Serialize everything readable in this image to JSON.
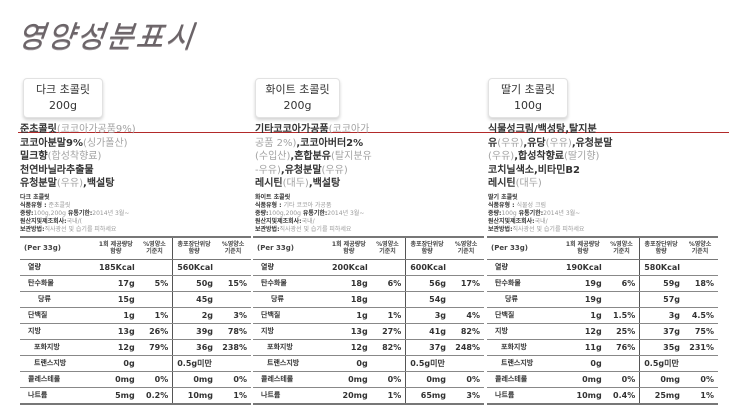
{
  "page": {
    "title": "영양성분표시",
    "accent_line_color": "#b22a2a"
  },
  "products": [
    {
      "name": "다크 초콜릿",
      "weight": "200g",
      "ingredients": [
        {
          "bold": "준초콜릿",
          "light": "(코코아가공품9%)"
        },
        {
          "bold": "코코아분말9%",
          "light": "(싱가폴산)"
        },
        {
          "bold": "밀크향",
          "light": "(합성착향료)"
        },
        {
          "bold": "천연바닐라추출물",
          "light": ""
        },
        {
          "bold": "유청분말",
          "light": "(우유)",
          "bold2": ",백설탕"
        }
      ],
      "meta": {
        "title": "다크 초콜릿",
        "type_label": "식품유형 :",
        "type_value": "준초콜릿",
        "weight_label": "중량:",
        "weight_value": "100g,200g",
        "expiry_label": "유통기한:",
        "expiry_value": "2014년 3월~",
        "origin_label": "원산지및제조회사:",
        "origin_value": "국내/(",
        "storage_label": "보관방법:",
        "storage_value": "직사광선 및 습기를 피하세요"
      },
      "table": {
        "headers": [
          "(Per 33g)",
          "1회 제공량당 함량",
          "%영양소 기준치",
          "총포장단위당 함량",
          "%영양소 기준치"
        ],
        "rows": [
          {
            "name": "열량",
            "serving": "185Kcal",
            "serving_pct": "",
            "total": "560Kcal",
            "total_pct": "",
            "level": 0
          },
          {
            "name": "탄수화물",
            "serving": "17g",
            "serving_pct": "5%",
            "total": "50g",
            "total_pct": "15%",
            "level": 0
          },
          {
            "name": "당류",
            "serving": "15g",
            "serving_pct": "",
            "total": "45g",
            "total_pct": "",
            "level": 2
          },
          {
            "name": "단백질",
            "serving": "1g",
            "serving_pct": "1%",
            "total": "2g",
            "total_pct": "3%",
            "level": 0
          },
          {
            "name": "지방",
            "serving": "13g",
            "serving_pct": "26%",
            "total": "39g",
            "total_pct": "78%",
            "level": 0
          },
          {
            "name": "포화지방",
            "serving": "12g",
            "serving_pct": "79%",
            "total": "36g",
            "total_pct": "238%",
            "level": 1
          },
          {
            "name": "트랜스지방",
            "serving": "0g",
            "serving_pct": "",
            "total": "0.5g미만",
            "total_pct": "",
            "level": 1
          },
          {
            "name": "콜레스테롤",
            "serving": "0mg",
            "serving_pct": "0%",
            "total": "0mg",
            "total_pct": "0%",
            "level": 0
          },
          {
            "name": "나트륨",
            "serving": "5mg",
            "serving_pct": "0.2%",
            "total": "10mg",
            "total_pct": "1%",
            "level": 0
          }
        ]
      }
    },
    {
      "name": "화이트 초콜릿",
      "weight": "200g",
      "ingredients": [
        {
          "bold": "기타코코아가공품",
          "light": "(코코아가"
        },
        {
          "bold": "",
          "light": "공품 2%)",
          "bold2": ",코코아버터2%"
        },
        {
          "bold": "",
          "light": "(수입산)",
          "bold2": ",혼합분유",
          "light2": "(탈지분유"
        },
        {
          "bold": "",
          "light": "-우유)",
          "bold2": ",유청분말",
          "light2": "(우유)"
        },
        {
          "bold": "레시틴",
          "light": "(대두)",
          "bold2": ",백설탕"
        }
      ],
      "meta": {
        "title": "화이트 초콜릿",
        "type_label": "식품유형 :",
        "type_value": "기타 코코아 가공품",
        "weight_label": "중량:",
        "weight_value": "100g,200g",
        "expiry_label": "유통기한:",
        "expiry_value": "2014년 3월~",
        "origin_label": "원산지및제조회사:",
        "origin_value": "국내/",
        "storage_label": "보관방법:",
        "storage_value": "직사광선 및 습기를 피하세요"
      },
      "table": {
        "headers": [
          "(Per 33g)",
          "1회 제공량당 함량",
          "%영양소 기준치",
          "총포장단위당 함량",
          "%영양소 기준치"
        ],
        "rows": [
          {
            "name": "열량",
            "serving": "200Kcal",
            "serving_pct": "",
            "total": "600Kcal",
            "total_pct": "",
            "level": 0
          },
          {
            "name": "탄수화물",
            "serving": "18g",
            "serving_pct": "6%",
            "total": "56g",
            "total_pct": "17%",
            "level": 0
          },
          {
            "name": "당류",
            "serving": "18g",
            "serving_pct": "",
            "total": "54g",
            "total_pct": "",
            "level": 2
          },
          {
            "name": "단백질",
            "serving": "1g",
            "serving_pct": "1%",
            "total": "3g",
            "total_pct": "4%",
            "level": 0
          },
          {
            "name": "지방",
            "serving": "13g",
            "serving_pct": "27%",
            "total": "41g",
            "total_pct": "82%",
            "level": 0
          },
          {
            "name": "포화지방",
            "serving": "12g",
            "serving_pct": "82%",
            "total": "37g",
            "total_pct": "248%",
            "level": 1
          },
          {
            "name": "트랜스지방",
            "serving": "0g",
            "serving_pct": "",
            "total": "0.5g미만",
            "total_pct": "",
            "level": 1
          },
          {
            "name": "콜레스테롤",
            "serving": "0mg",
            "serving_pct": "0%",
            "total": "0mg",
            "total_pct": "0%",
            "level": 0
          },
          {
            "name": "나트륨",
            "serving": "20mg",
            "serving_pct": "1%",
            "total": "65mg",
            "total_pct": "3%",
            "level": 0
          }
        ]
      }
    },
    {
      "name": "딸기 초콜릿",
      "weight": "100g",
      "ingredients": [
        {
          "bold": "식물성크림/백성탕,탈지분",
          "light": ""
        },
        {
          "bold": "유",
          "light": "(우유)",
          "bold2": ",유당",
          "light2": "(우유)",
          "bold3": ",유청분말"
        },
        {
          "bold": "",
          "light": "(우유)",
          "bold2": ",합성착향료",
          "light2": "(딸기향)"
        },
        {
          "bold": "코치닐색소,비타민B2",
          "light": ""
        },
        {
          "bold": "레시틴",
          "light": "(대두)"
        }
      ],
      "meta": {
        "title": "딸기 초콜릿",
        "type_label": "식품유형 :",
        "type_value": "식물성 크림",
        "weight_label": "중량:",
        "weight_value": "100g",
        "expiry_label": "유통기한:",
        "expiry_value": "2014년 3월~",
        "origin_label": "원산지및제조회사:",
        "origin_value": "국내/",
        "storage_label": "보관방법:",
        "storage_value": "직사광선 및 습기를 피하세요"
      },
      "table": {
        "headers": [
          "(Per 33g)",
          "1회 제공량당 함량",
          "%영양소 기준치",
          "총포장단위당 함량",
          "%영양소 기준치"
        ],
        "rows": [
          {
            "name": "열량",
            "serving": "190Kcal",
            "serving_pct": "",
            "total": "580Kcal",
            "total_pct": "",
            "level": 0
          },
          {
            "name": "탄수화물",
            "serving": "19g",
            "serving_pct": "6%",
            "total": "59g",
            "total_pct": "18%",
            "level": 0
          },
          {
            "name": "당류",
            "serving": "19g",
            "serving_pct": "",
            "total": "57g",
            "total_pct": "",
            "level": 2
          },
          {
            "name": "단백질",
            "serving": "1g",
            "serving_pct": "1.5%",
            "total": "3g",
            "total_pct": "4.5%",
            "level": 0
          },
          {
            "name": "지방",
            "serving": "12g",
            "serving_pct": "25%",
            "total": "37g",
            "total_pct": "75%",
            "level": 0
          },
          {
            "name": "포화지방",
            "serving": "11g",
            "serving_pct": "76%",
            "total": "35g",
            "total_pct": "231%",
            "level": 1
          },
          {
            "name": "트랜스지방",
            "serving": "0g",
            "serving_pct": "",
            "total": "0.5g미만",
            "total_pct": "",
            "level": 1
          },
          {
            "name": "콜레스테롤",
            "serving": "0mg",
            "serving_pct": "0%",
            "total": "0mg",
            "total_pct": "0%",
            "level": 0
          },
          {
            "name": "나트륨",
            "serving": "10mg",
            "serving_pct": "0.4%",
            "total": "25mg",
            "total_pct": "1%",
            "level": 0
          }
        ]
      }
    }
  ]
}
